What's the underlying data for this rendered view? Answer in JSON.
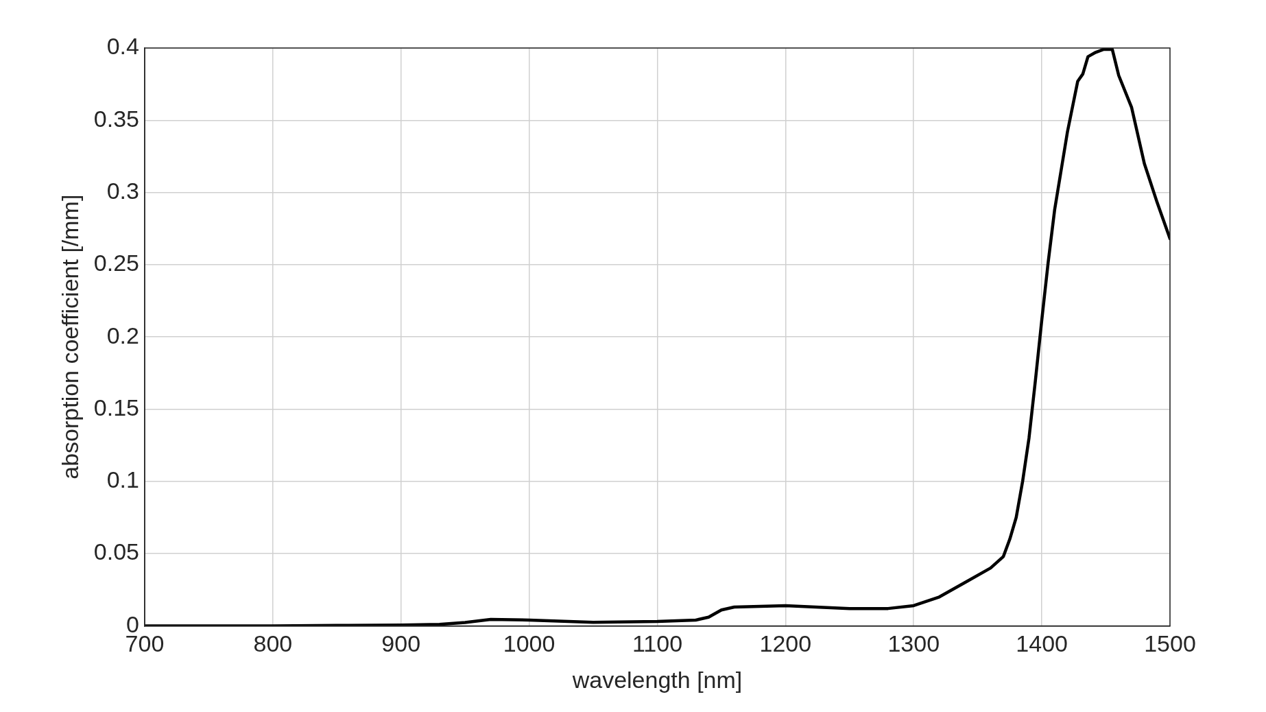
{
  "chart_data": {
    "type": "line",
    "xlabel": "wavelength [nm]",
    "ylabel": "absorption coefficient [/mm]",
    "x": [
      700,
      750,
      800,
      850,
      900,
      930,
      950,
      970,
      1000,
      1050,
      1100,
      1130,
      1140,
      1150,
      1160,
      1200,
      1250,
      1280,
      1300,
      1320,
      1340,
      1360,
      1370,
      1375,
      1380,
      1385,
      1390,
      1395,
      1400,
      1405,
      1410,
      1415,
      1420,
      1428,
      1432,
      1436,
      1442,
      1448,
      1455,
      1460,
      1470,
      1480,
      1490,
      1500
    ],
    "series": [
      {
        "color": "#000000",
        "values": [
          0,
          0,
          0,
          0.0003,
          0.0006,
          0.001,
          0.0023,
          0.0045,
          0.004,
          0.0025,
          0.003,
          0.004,
          0.006,
          0.011,
          0.013,
          0.014,
          0.012,
          0.012,
          0.014,
          0.02,
          0.03,
          0.04,
          0.048,
          0.06,
          0.075,
          0.1,
          0.13,
          0.17,
          0.212,
          0.252,
          0.288,
          0.315,
          0.342,
          0.377,
          0.382,
          0.394,
          0.397,
          0.399,
          0.399,
          0.381,
          0.359,
          0.32,
          0.293,
          0.268
        ]
      }
    ],
    "xlim": [
      700,
      1500
    ],
    "xticks": [
      700,
      800,
      900,
      1000,
      1100,
      1200,
      1300,
      1400,
      1500
    ],
    "ylim": [
      0,
      0.4
    ],
    "yticks": [
      0,
      0.05,
      0.1,
      0.15,
      0.2,
      0.25,
      0.3,
      0.35,
      0.4
    ],
    "grid": true,
    "legend": false,
    "marker": "none",
    "line_style": "solid"
  }
}
